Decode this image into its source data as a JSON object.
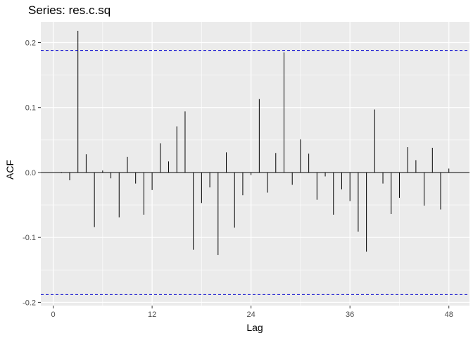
{
  "chart_data": {
    "type": "bar",
    "title": "Series: res.c.sq",
    "xlabel": "Lag",
    "ylabel": "ACF",
    "xlim": [
      -1.5,
      50.5
    ],
    "ylim": [
      -0.205,
      0.232
    ],
    "x_ticks": [
      0,
      12,
      24,
      36,
      48
    ],
    "x_tick_labels": [
      "0",
      "12",
      "24",
      "36",
      "48"
    ],
    "y_ticks": [
      -0.2,
      -0.1,
      0.0,
      0.1,
      0.2
    ],
    "y_tick_labels": [
      "-0.2",
      "-0.1",
      "0.0",
      "0.1",
      "0.2"
    ],
    "confidence_bounds": [
      0.188,
      -0.188
    ],
    "grid": true,
    "lags": [
      1,
      2,
      3,
      4,
      5,
      6,
      7,
      8,
      9,
      10,
      11,
      12,
      13,
      14,
      15,
      16,
      17,
      18,
      19,
      20,
      21,
      22,
      23,
      24,
      25,
      26,
      27,
      28,
      29,
      30,
      31,
      32,
      33,
      34,
      35,
      36,
      37,
      38,
      39,
      40,
      41,
      42,
      43,
      44,
      45,
      46,
      47,
      48
    ],
    "values": [
      -0.001,
      -0.012,
      0.218,
      0.028,
      -0.084,
      0.003,
      -0.009,
      -0.069,
      0.024,
      -0.017,
      -0.065,
      -0.027,
      0.045,
      0.017,
      0.071,
      0.094,
      -0.119,
      -0.047,
      -0.023,
      -0.127,
      0.031,
      -0.085,
      -0.035,
      -0.004,
      0.113,
      -0.031,
      0.03,
      0.185,
      -0.019,
      0.051,
      0.029,
      -0.042,
      -0.006,
      -0.065,
      -0.026,
      -0.044,
      -0.091,
      -0.122,
      0.097,
      -0.017,
      -0.064,
      -0.039,
      0.039,
      0.019,
      -0.051,
      0.038,
      -0.057,
      0.006
    ],
    "colors": {
      "panel": "#ebebeb",
      "grid": "#ffffff",
      "bar": "#000000",
      "bound": "#0000cc"
    }
  }
}
